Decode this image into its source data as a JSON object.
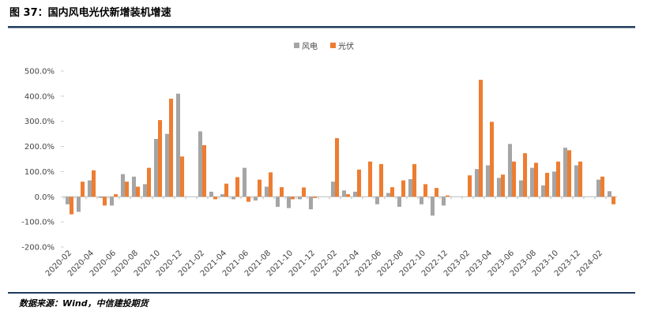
{
  "chart_data": {
    "type": "bar",
    "title": "图 37：国内风电光伏新增装机增速",
    "source": "数据来源：Wind，中信建投期货",
    "categories": [
      "2020-02",
      null,
      "2020-04",
      null,
      "2020-06",
      null,
      "2020-08",
      null,
      "2020-10",
      null,
      "2020-12",
      null,
      "2021-02",
      null,
      "2021-04",
      null,
      "2021-06",
      null,
      "2021-08",
      null,
      "2021-10",
      null,
      "2021-12",
      null,
      "2022-02",
      null,
      "2022-04",
      null,
      "2022-06",
      null,
      "2022-08",
      null,
      "2022-10",
      null,
      "2022-12",
      null,
      "2023-02",
      null,
      "2023-04",
      null,
      "2023-06",
      null,
      "2023-08",
      null,
      "2023-10",
      null,
      "2023-12",
      null,
      "2024-02",
      null
    ],
    "series": [
      {
        "name": "风电",
        "color": "#a5a5a5",
        "values": [
          -30,
          -60,
          65,
          -5,
          -35,
          90,
          80,
          50,
          230,
          250,
          410,
          null,
          260,
          20,
          10,
          -10,
          115,
          -15,
          40,
          -40,
          -45,
          -10,
          -50,
          null,
          60,
          25,
          20,
          0,
          -30,
          15,
          -40,
          70,
          -30,
          -75,
          -35,
          null,
          0,
          110,
          125,
          75,
          210,
          65,
          115,
          45,
          100,
          195,
          125,
          null,
          68,
          22
        ]
      },
      {
        "name": "光伏",
        "color": "#ed7d31",
        "values": [
          -70,
          60,
          105,
          -35,
          10,
          60,
          40,
          115,
          305,
          390,
          160,
          null,
          205,
          -10,
          52,
          78,
          -20,
          68,
          97,
          38,
          -10,
          37,
          -5,
          null,
          233,
          10,
          108,
          140,
          130,
          38,
          65,
          130,
          50,
          35,
          5,
          null,
          85,
          465,
          298,
          88,
          140,
          173,
          135,
          95,
          140,
          185,
          140,
          null,
          80,
          -30
        ]
      }
    ],
    "ylim": [
      -200,
      500
    ],
    "yticks": [
      {
        "value": -200,
        "label": "-200.0%"
      },
      {
        "value": -100,
        "label": "-100.0%"
      },
      {
        "value": 0,
        "label": "0.0%"
      },
      {
        "value": 100,
        "label": "100.0%"
      },
      {
        "value": 200,
        "label": "200.0%"
      },
      {
        "value": 300,
        "label": "300.0%"
      },
      {
        "value": 400,
        "label": "400.0%"
      },
      {
        "value": 500,
        "label": "500.0%"
      }
    ],
    "legend": "top"
  }
}
